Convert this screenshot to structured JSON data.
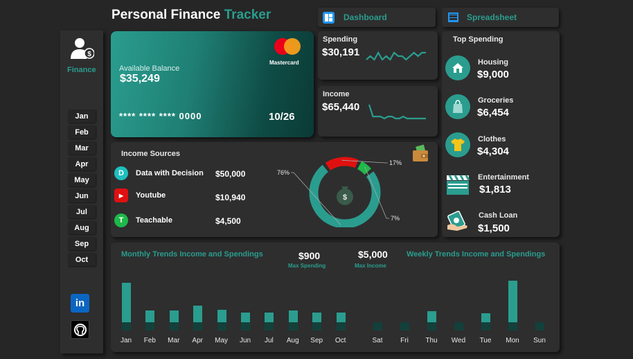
{
  "header": {
    "title_main": "Personal Finance",
    "title_accent": "Tracker",
    "nav": [
      {
        "label": "Dashboard",
        "icon": "dashboard-icon"
      },
      {
        "label": "Spreadsheet",
        "icon": "spreadsheet-icon"
      }
    ]
  },
  "sidebar": {
    "label": "Finance",
    "icon": "finance-user-icon",
    "months": [
      "Jan",
      "Feb",
      "Mar",
      "Apr",
      "May",
      "Jun",
      "Jul",
      "Aug",
      "Sep",
      "Oct"
    ],
    "social": [
      {
        "name": "linkedin-icon",
        "glyph": "in"
      },
      {
        "name": "github-icon",
        "glyph": ""
      }
    ]
  },
  "card": {
    "label": "Available Balance",
    "balance": "$35,249",
    "number": "**** **** **** 0000",
    "expiry": "10/26",
    "brand": "Mastercard"
  },
  "kpis": {
    "spending": {
      "label": "Spending",
      "value": "$30,191"
    },
    "income": {
      "label": "Income",
      "value": "$65,440"
    }
  },
  "top_spending": {
    "title": "Top Spending",
    "items": [
      {
        "name": "Housing",
        "value": "$9,000",
        "icon": "house-icon"
      },
      {
        "name": "Groceries",
        "value": "$6,454",
        "icon": "grocery-bag-icon"
      },
      {
        "name": "Clothes",
        "value": "$4,304",
        "icon": "shirt-icon"
      },
      {
        "name": "Entertainment",
        "value": "$1,813",
        "icon": "clapperboard-icon"
      },
      {
        "name": "Cash Loan",
        "value": "$1,500",
        "icon": "cash-hand-icon"
      }
    ]
  },
  "income_sources": {
    "title": "Income Sources",
    "items": [
      {
        "name": "Data with Decision",
        "value": "$50,000",
        "glyph": "D",
        "color": "#1fbfbf"
      },
      {
        "name": "Youtube",
        "value": "$10,940",
        "glyph": "▶",
        "color": "#e01010"
      },
      {
        "name": "Teachable",
        "value": "$4,500",
        "glyph": "T",
        "color": "#1fb84a"
      }
    ],
    "donut_labels": [
      "76%",
      "17%",
      "7%"
    ]
  },
  "trends": {
    "monthly_title": "Monthly Trends Income and Spendings",
    "weekly_title": "Weekly Trends Income and Spendings",
    "max_spending_value": "$900",
    "max_spending_label": "Max Spending",
    "max_income_value": "$5,000",
    "max_income_label": "Max Income"
  },
  "chart_data": [
    {
      "type": "donut",
      "categories": [
        "Data with Decision",
        "Youtube",
        "Teachable"
      ],
      "values": [
        76,
        17,
        7
      ],
      "colors": [
        "#2a9d8f",
        "#e01010",
        "#1fb84a"
      ]
    },
    {
      "type": "bar",
      "categories": [
        "Jan",
        "Feb",
        "Mar",
        "Apr",
        "May",
        "Jun",
        "Jul",
        "Aug",
        "Sep",
        "Oct"
      ],
      "series": [
        {
          "values": [
            5000,
            2100,
            2100,
            2600,
            2200,
            1900,
            1900,
            2100,
            1900,
            1900
          ]
        },
        {
          "values": [
            900,
            900,
            900,
            900,
            900,
            900,
            900,
            900,
            900,
            900
          ]
        }
      ]
    },
    {
      "type": "bar",
      "categories": [
        "Sat",
        "Fri",
        "Thu",
        "Wed",
        "Tue",
        "Mon",
        "Sun"
      ],
      "series": [
        {
          "values": [
            300,
            1100,
            2700,
            300,
            2400,
            6900,
            1100
          ]
        },
        {
          "values": [
            120,
            120,
            120,
            120,
            120,
            120,
            120
          ]
        }
      ]
    },
    {
      "type": "line",
      "name": "spending-sparkline",
      "values": [
        3,
        4,
        3,
        5,
        3,
        4,
        3,
        5,
        4,
        4,
        3,
        4,
        5,
        4,
        5,
        5
      ]
    },
    {
      "type": "line",
      "name": "income-sparkline",
      "values": [
        9,
        3,
        3,
        3,
        2,
        3,
        3,
        2,
        2,
        3,
        2,
        2,
        2,
        2,
        2,
        2
      ]
    }
  ]
}
